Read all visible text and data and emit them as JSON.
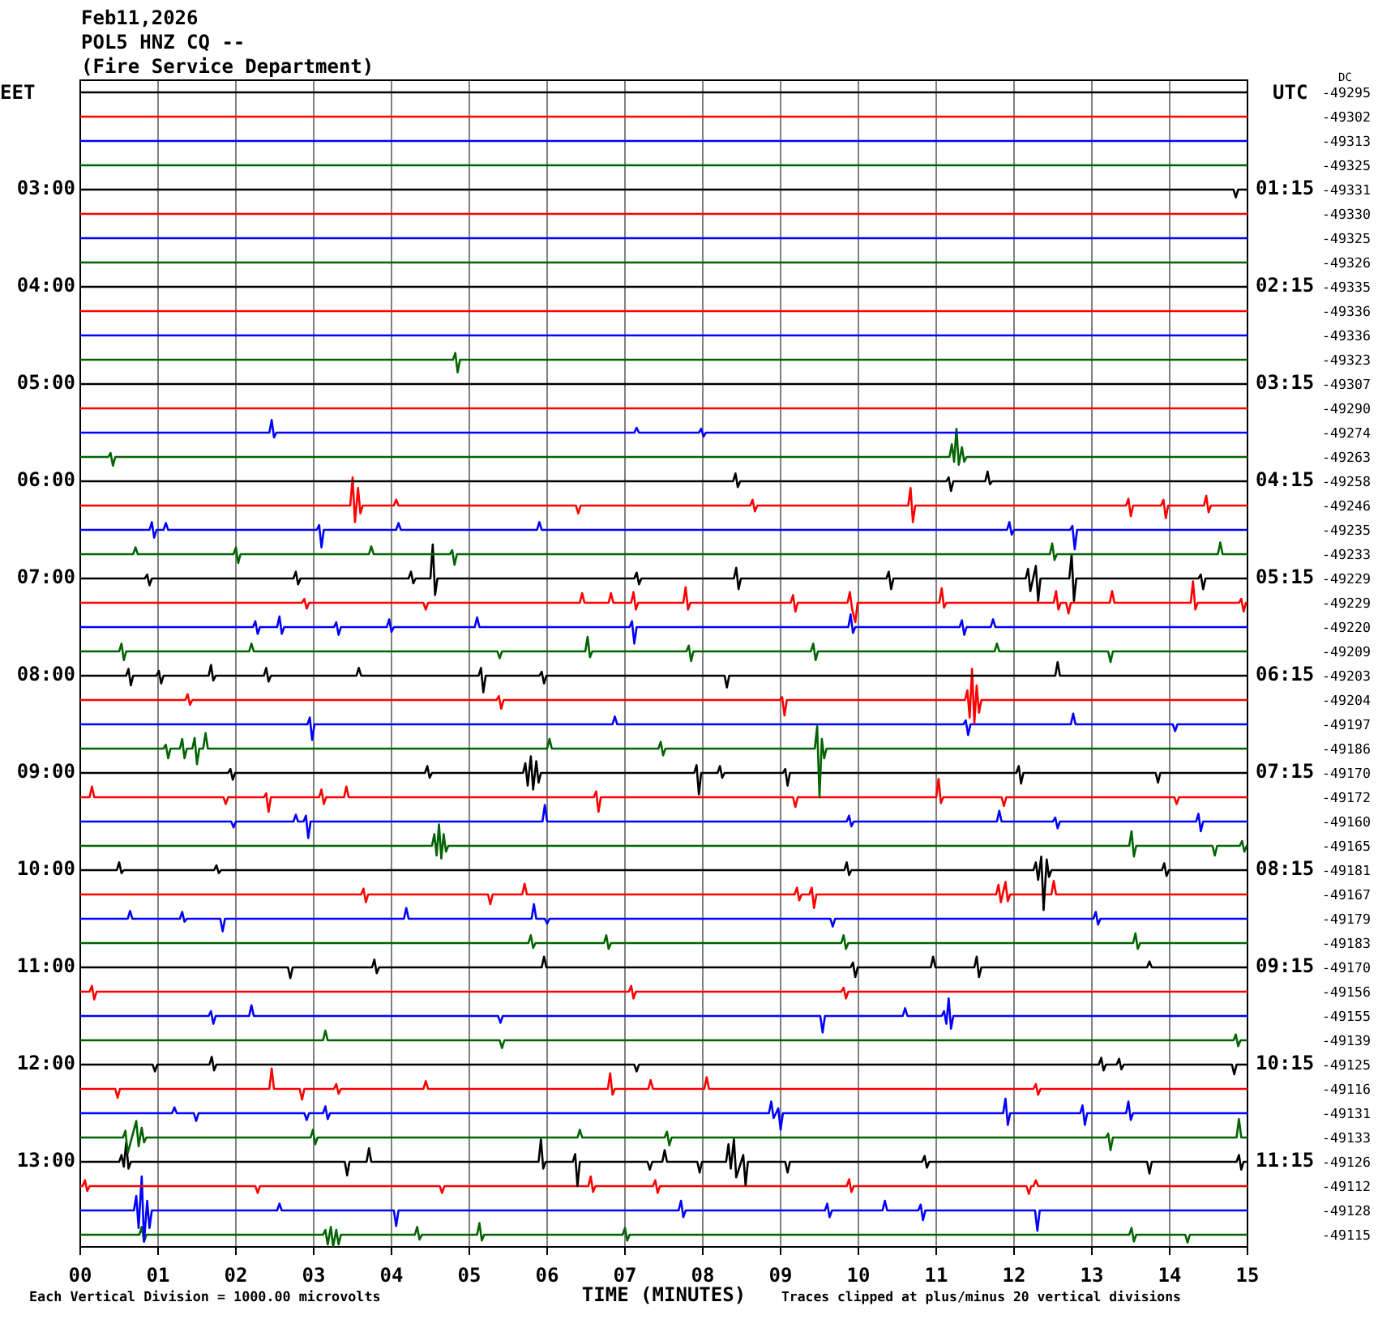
{
  "chart_data": {
    "type": "line",
    "title": "Feb11,2026",
    "subtitle": "POL5 HNZ CQ --\n(Fire Service Department)",
    "xlabel": "TIME (MINUTES)",
    "ylabel": "EET",
    "y2label": "UTC",
    "annotations": [
      "DC",
      "-49295",
      "-49302",
      "-49313",
      "-49325",
      "-49331",
      "-49330",
      "-49325",
      "-49326",
      "-49335",
      "-49336",
      "-49336",
      "-49323",
      "-49307",
      "-49290",
      "-49274",
      "-49263",
      "-49258",
      "-49246",
      "-49235",
      "-49233",
      "-49229",
      "-49229",
      "-49220",
      "-49209",
      "-49203",
      "-49204",
      "-49197",
      "-49186",
      "-49170",
      "-49172",
      "-49160",
      "-49165",
      "-49181",
      "-49167",
      "-49179",
      "-49183",
      "-49170",
      "-49156",
      "-49155",
      "-49139",
      "-49125",
      "-49116",
      "-49131",
      "-49133",
      "-49126",
      "-49112",
      "-49128",
      "-49115",
      "Each Vertical Division = 1000.00 microvolts",
      "Traces clipped at plus/minus 20 vertical divisions"
    ],
    "xlim": [
      0,
      15
    ],
    "xticks": [
      {
        "value": 0,
        "label": "00"
      },
      {
        "value": 1,
        "label": "01"
      },
      {
        "value": 2,
        "label": "02"
      },
      {
        "value": 3,
        "label": "03"
      },
      {
        "value": 4,
        "label": "04"
      },
      {
        "value": 5,
        "label": "05"
      },
      {
        "value": 6,
        "label": "06"
      },
      {
        "value": 7,
        "label": "07"
      },
      {
        "value": 8,
        "label": "08"
      },
      {
        "value": 9,
        "label": "09"
      },
      10,
      11,
      12,
      13,
      14,
      15
    ],
    "ylim": [
      13.875,
      1.875
    ],
    "yticks": [
      {
        "value": 3,
        "label": "03:00"
      },
      {
        "value": 4,
        "label": "04:00"
      },
      {
        "value": 5,
        "label": "05:00"
      },
      {
        "value": 6,
        "label": "06:00"
      },
      {
        "value": 7,
        "label": "07:00"
      },
      {
        "value": 8,
        "label": "08:00"
      },
      {
        "value": 9,
        "label": "09:00"
      },
      {
        "value": 10,
        "label": "10:00"
      },
      {
        "value": 11,
        "label": "11:00"
      },
      {
        "value": 12,
        "label": "12:00"
      },
      {
        "value": 13,
        "label": "13:00"
      }
    ],
    "y2lim": [
      12.125,
      0.125
    ],
    "y2ticks": [
      {
        "value": 1.25,
        "label": "01:15"
      },
      {
        "value": 2.25,
        "label": "02:15"
      },
      {
        "value": 3.25,
        "label": "03:15"
      },
      {
        "value": 4.25,
        "label": "04:15"
      },
      {
        "value": 5.25,
        "label": "05:15"
      },
      {
        "value": 6.25,
        "label": "06:15"
      },
      {
        "value": 7.25,
        "label": "07:15"
      },
      {
        "value": 8.25,
        "label": "08:15"
      },
      {
        "value": 9.25,
        "label": "09:15"
      },
      {
        "value": 10.25,
        "label": "10:15"
      },
      {
        "value": 11.25,
        "label": "11:15"
      }
    ],
    "grid": "x",
    "marker": "none",
    "line_style": "solid",
    "series": [
      {
        "color": "#000000",
        "x": [
          0,
          15
        ],
        "values": [
          2,
          2
        ]
      },
      {
        "color": "#ff0000",
        "x": [
          0,
          15
        ],
        "values": [
          2.25,
          2.25
        ]
      },
      {
        "color": "#0000ff",
        "x": [
          0,
          15
        ],
        "values": [
          2.5,
          2.5
        ]
      },
      {
        "color": "#006400",
        "x": [
          0,
          15
        ],
        "values": [
          2.75,
          2.75
        ]
      },
      {
        "color": "#000000",
        "x": [
          0,
          14.82,
          14.85,
          14.88,
          15
        ],
        "values": [
          3,
          3,
          3.08,
          3,
          3
        ]
      },
      {
        "color": "#ff0000",
        "x": [
          0,
          15
        ],
        "values": [
          3.25,
          3.25
        ]
      },
      {
        "color": "#0000ff",
        "x": [
          0,
          15
        ],
        "values": [
          3.5,
          3.5
        ]
      },
      {
        "color": "#006400",
        "x": [
          0,
          15
        ],
        "values": [
          3.75,
          3.75
        ]
      },
      {
        "color": "#000000",
        "x": [
          0,
          15
        ],
        "values": [
          4,
          4
        ]
      },
      {
        "color": "#ff0000",
        "x": [
          0,
          15
        ],
        "values": [
          4.25,
          4.25
        ]
      },
      {
        "color": "#0000ff",
        "x": [
          0,
          15
        ],
        "values": [
          4.5,
          4.5
        ]
      },
      {
        "color": "#006400",
        "x": [
          0,
          4.79,
          4.82,
          4.85,
          4.88,
          15
        ],
        "values": [
          4.75,
          4.75,
          4.68,
          4.88,
          4.75,
          4.75
        ]
      },
      {
        "color": "#000000",
        "x": [
          0,
          15
        ],
        "values": [
          5,
          5
        ]
      },
      {
        "color": "#ff0000",
        "x": [
          0,
          15
        ],
        "values": [
          5.25,
          5.25
        ]
      },
      {
        "color": "#0000ff",
        "x": [
          0,
          2.43,
          2.46,
          2.49,
          2.52,
          7.12,
          7.15,
          7.18,
          7.95,
          7.98,
          8.01,
          8.04,
          15
        ],
        "values": [
          5.5,
          5.5,
          5.37,
          5.55,
          5.5,
          5.5,
          5.45,
          5.5,
          5.5,
          5.46,
          5.54,
          5.5,
          5.5
        ]
      },
      {
        "color": "#006400",
        "x": [
          0,
          0.36,
          0.39,
          0.42,
          0.45,
          11.17,
          11.2,
          11.23,
          11.26,
          11.29,
          11.33,
          11.36,
          11.39,
          15
        ],
        "values": [
          5.75,
          5.75,
          5.71,
          5.84,
          5.75,
          5.75,
          5.62,
          5.8,
          5.46,
          5.83,
          5.65,
          5.8,
          5.75,
          5.75
        ]
      },
      {
        "color": "#000000",
        "x": [
          0,
          8.39,
          8.42,
          8.45,
          8.48,
          11.13,
          11.16,
          11.19,
          11.22,
          11.63,
          11.66,
          11.69,
          11.72,
          15
        ],
        "values": [
          6,
          6,
          5.92,
          6.06,
          6,
          6,
          5.96,
          6.1,
          6,
          6,
          5.9,
          6.03,
          6,
          6
        ]
      },
      {
        "color": "#ff0000",
        "x": [
          0,
          3.47,
          3.5,
          3.53,
          3.57,
          3.6,
          3.63,
          4.03,
          4.06,
          4.09,
          6.37,
          6.4,
          6.43,
          8.61,
          8.64,
          8.67,
          8.7,
          10.64,
          10.67,
          10.7,
          10.73,
          13.44,
          13.47,
          13.5,
          13.53,
          13.89,
          13.92,
          13.95,
          13.98,
          14.44,
          14.47,
          14.5,
          14.53,
          15
        ],
        "values": [
          6.25,
          6.25,
          5.96,
          6.42,
          6.07,
          6.33,
          6.25,
          6.25,
          6.19,
          6.25,
          6.25,
          6.33,
          6.25,
          6.25,
          6.19,
          6.31,
          6.25,
          6.25,
          6.07,
          6.42,
          6.25,
          6.25,
          6.18,
          6.36,
          6.25,
          6.25,
          6.19,
          6.38,
          6.25,
          6.25,
          6.15,
          6.32,
          6.25,
          6.25
        ]
      },
      {
        "color": "#0000ff",
        "x": [
          0,
          0.89,
          0.92,
          0.95,
          0.98,
          1.07,
          1.1,
          1.13,
          3.04,
          3.07,
          3.1,
          3.13,
          4.06,
          4.09,
          4.12,
          5.87,
          5.9,
          5.93,
          11.91,
          11.94,
          11.97,
          12,
          12.72,
          12.75,
          12.78,
          12.81,
          15
        ],
        "values": [
          6.5,
          6.5,
          6.42,
          6.58,
          6.5,
          6.5,
          6.43,
          6.5,
          6.5,
          6.45,
          6.68,
          6.5,
          6.5,
          6.43,
          6.5,
          6.5,
          6.42,
          6.5,
          6.5,
          6.42,
          6.55,
          6.5,
          6.5,
          6.46,
          6.7,
          6.5,
          6.5
        ]
      },
      {
        "color": "#006400",
        "x": [
          0,
          0.68,
          0.71,
          0.74,
          1.97,
          2,
          2.03,
          2.06,
          3.71,
          3.74,
          3.77,
          4.75,
          4.78,
          4.81,
          4.84,
          12.46,
          12.49,
          12.52,
          12.55,
          14.62,
          14.65,
          14.68,
          15
        ],
        "values": [
          6.75,
          6.75,
          6.68,
          6.75,
          6.75,
          6.68,
          6.84,
          6.75,
          6.75,
          6.67,
          6.75,
          6.75,
          6.71,
          6.86,
          6.75,
          6.75,
          6.64,
          6.81,
          6.75,
          6.75,
          6.63,
          6.75,
          6.75
        ]
      },
      {
        "color": "#000000",
        "x": [
          0,
          0.83,
          0.86,
          0.89,
          0.92,
          2.74,
          2.77,
          2.8,
          2.83,
          4.22,
          4.25,
          4.28,
          4.31,
          4.5,
          4.53,
          4.56,
          4.59,
          7.12,
          7.15,
          7.18,
          7.21,
          8.4,
          8.43,
          8.46,
          8.49,
          10.36,
          10.39,
          10.42,
          10.45,
          12.15,
          12.18,
          12.21,
          12.28,
          12.31,
          12.34,
          12.71,
          12.74,
          12.77,
          12.8,
          14.37,
          14.4,
          14.43,
          14.46,
          15
        ],
        "values": [
          7,
          7,
          6.96,
          7.07,
          7,
          7,
          6.93,
          7.06,
          7,
          7,
          6.93,
          7.05,
          7,
          7,
          6.65,
          7.17,
          7,
          7,
          6.94,
          7.06,
          7,
          7,
          6.89,
          7.11,
          7,
          7,
          6.93,
          7.11,
          7,
          7,
          6.9,
          7.13,
          6.87,
          7.23,
          7,
          7,
          6.75,
          7.23,
          7,
          7,
          6.96,
          7.11,
          7,
          7
        ]
      },
      {
        "color": "#ff0000",
        "x": [
          0,
          2.85,
          2.88,
          2.91,
          2.94,
          4.41,
          4.44,
          4.47,
          6.42,
          6.45,
          6.48,
          6.79,
          6.82,
          6.85,
          7.08,
          7.11,
          7.14,
          7.17,
          7.75,
          7.78,
          7.81,
          7.84,
          9.13,
          9.16,
          9.19,
          9.22,
          9.86,
          9.89,
          9.92,
          9.96,
          9.99,
          11.04,
          11.07,
          11.1,
          11.13,
          12.51,
          12.54,
          12.57,
          12.6,
          12.67,
          12.7,
          12.73,
          13.23,
          13.26,
          13.29,
          14.27,
          14.3,
          14.33,
          14.36,
          14.89,
          14.92,
          14.95,
          14.98,
          15
        ],
        "values": [
          7.25,
          7.25,
          7.21,
          7.31,
          7.25,
          7.25,
          7.32,
          7.25,
          7.25,
          7.15,
          7.25,
          7.25,
          7.15,
          7.25,
          7.25,
          7.14,
          7.32,
          7.25,
          7.25,
          7.09,
          7.32,
          7.25,
          7.25,
          7.17,
          7.34,
          7.25,
          7.25,
          7.14,
          7.32,
          7.45,
          7.25,
          7.25,
          7.1,
          7.3,
          7.25,
          7.25,
          7.13,
          7.32,
          7.25,
          7.25,
          7.36,
          7.25,
          7.25,
          7.13,
          7.25,
          7.25,
          7.03,
          7.32,
          7.25,
          7.25,
          7.21,
          7.34,
          7.25,
          7.25
        ]
      },
      {
        "color": "#0000ff",
        "x": [
          0,
          2.22,
          2.25,
          2.28,
          2.31,
          2.53,
          2.56,
          2.59,
          2.62,
          3.26,
          3.29,
          3.32,
          3.35,
          3.94,
          3.97,
          4,
          4.03,
          5.07,
          5.1,
          5.13,
          7.06,
          7.09,
          7.12,
          7.15,
          9.87,
          9.9,
          9.93,
          9.96,
          11.3,
          11.33,
          11.36,
          11.39,
          11.7,
          11.73,
          11.76,
          15
        ],
        "values": [
          7.5,
          7.5,
          7.44,
          7.57,
          7.5,
          7.5,
          7.39,
          7.57,
          7.5,
          7.5,
          7.45,
          7.58,
          7.5,
          7.5,
          7.42,
          7.55,
          7.5,
          7.5,
          7.4,
          7.5,
          7.5,
          7.44,
          7.67,
          7.5,
          7.5,
          7.37,
          7.56,
          7.5,
          7.5,
          7.43,
          7.58,
          7.5,
          7.5,
          7.42,
          7.5,
          7.5
        ]
      },
      {
        "color": "#006400",
        "x": [
          0,
          0.5,
          0.53,
          0.56,
          0.59,
          2.17,
          2.2,
          2.23,
          5.36,
          5.39,
          5.42,
          6.49,
          6.52,
          6.55,
          6.58,
          7.79,
          7.82,
          7.85,
          7.88,
          9.39,
          9.42,
          9.45,
          9.48,
          11.75,
          11.78,
          11.81,
          13.21,
          13.24,
          13.27,
          15
        ],
        "values": [
          7.75,
          7.75,
          7.67,
          7.84,
          7.75,
          7.75,
          7.67,
          7.75,
          7.75,
          7.82,
          7.75,
          7.75,
          7.6,
          7.81,
          7.75,
          7.75,
          7.69,
          7.85,
          7.75,
          7.75,
          7.67,
          7.84,
          7.75,
          7.75,
          7.67,
          7.75,
          7.75,
          7.86,
          7.75,
          7.75
        ]
      },
      {
        "color": "#000000",
        "x": [
          0,
          0.59,
          0.62,
          0.65,
          0.68,
          0.98,
          1.01,
          1.04,
          1.07,
          1.65,
          1.68,
          1.71,
          1.74,
          2.36,
          2.39,
          2.42,
          2.45,
          3.55,
          3.58,
          3.61,
          5.12,
          5.15,
          5.18,
          5.21,
          5.9,
          5.93,
          5.96,
          5.99,
          8.28,
          8.31,
          8.34,
          12.53,
          12.56,
          12.59,
          15
        ],
        "values": [
          8,
          8,
          7.93,
          8.1,
          8,
          8,
          7.95,
          8.08,
          8,
          8,
          7.89,
          8.05,
          8,
          8,
          7.92,
          8.06,
          8,
          8,
          7.92,
          8,
          8,
          7.92,
          8.17,
          8,
          8,
          7.96,
          8.08,
          8,
          8,
          8.12,
          8,
          8,
          7.86,
          8,
          8
        ]
      },
      {
        "color": "#ff0000",
        "x": [
          0,
          1.35,
          1.38,
          1.41,
          1.44,
          5.35,
          5.38,
          5.41,
          5.44,
          8.99,
          9.02,
          9.05,
          9.08,
          11.37,
          11.4,
          11.43,
          11.46,
          11.49,
          11.52,
          11.55,
          11.58,
          15
        ],
        "values": [
          8.25,
          8.25,
          8.19,
          8.3,
          8.25,
          8.25,
          8.21,
          8.34,
          8.25,
          8.25,
          8.22,
          8.41,
          8.25,
          8.25,
          8.15,
          8.43,
          7.93,
          8.49,
          8.1,
          8.38,
          8.25,
          8.25
        ]
      },
      {
        "color": "#0000ff",
        "x": [
          0,
          2.92,
          2.95,
          2.98,
          3.01,
          6.84,
          6.87,
          6.9,
          11.35,
          11.38,
          11.41,
          11.44,
          12.73,
          12.76,
          12.79,
          14.04,
          14.07,
          14.1,
          15
        ],
        "values": [
          8.5,
          8.5,
          8.43,
          8.66,
          8.5,
          8.5,
          8.42,
          8.5,
          8.5,
          8.46,
          8.61,
          8.5,
          8.5,
          8.39,
          8.5,
          8.5,
          8.57,
          8.5,
          8.5
        ]
      },
      {
        "color": "#006400",
        "x": [
          0,
          1.07,
          1.1,
          1.13,
          1.16,
          1.28,
          1.31,
          1.34,
          1.37,
          1.44,
          1.47,
          1.5,
          1.53,
          1.58,
          1.61,
          1.64,
          6,
          6.03,
          6.06,
          7.43,
          7.46,
          7.49,
          7.52,
          9.44,
          9.47,
          9.5,
          9.53,
          9.56,
          9.59,
          15
        ],
        "values": [
          8.75,
          8.75,
          8.71,
          8.85,
          8.75,
          8.75,
          8.65,
          8.85,
          8.75,
          8.75,
          8.64,
          8.91,
          8.75,
          8.75,
          8.59,
          8.75,
          8.75,
          8.65,
          8.75,
          8.75,
          8.68,
          8.82,
          8.75,
          8.75,
          8.52,
          9.25,
          8.65,
          8.85,
          8.75,
          8.75
        ]
      },
      {
        "color": "#000000",
        "x": [
          0,
          1.9,
          1.93,
          1.96,
          1.99,
          4.43,
          4.46,
          4.49,
          4.52,
          5.69,
          5.72,
          5.75,
          5.79,
          5.82,
          5.86,
          5.89,
          5.92,
          7.89,
          7.92,
          7.95,
          7.98,
          8.19,
          8.22,
          8.25,
          8.28,
          9.03,
          9.06,
          9.09,
          9.12,
          12.03,
          12.06,
          12.09,
          12.12,
          13.82,
          13.85,
          13.88,
          15
        ],
        "values": [
          9,
          9,
          8.96,
          9.07,
          9,
          9,
          8.93,
          9.05,
          9,
          9,
          8.9,
          9.13,
          8.83,
          9.17,
          8.88,
          9.1,
          9,
          9,
          8.92,
          9.22,
          9,
          9,
          8.93,
          9.05,
          9,
          9,
          8.96,
          9.13,
          9,
          9,
          8.93,
          9.11,
          9,
          9,
          9.1,
          9,
          9
        ]
      },
      {
        "color": "#ff0000",
        "x": [
          0,
          0.12,
          0.15,
          0.18,
          1.84,
          1.87,
          1.9,
          2.36,
          2.39,
          2.42,
          2.45,
          3.07,
          3.1,
          3.13,
          3.16,
          3.39,
          3.42,
          3.45,
          6.6,
          6.63,
          6.66,
          6.69,
          9.16,
          9.19,
          9.22,
          11,
          11.03,
          11.06,
          11.09,
          11.84,
          11.87,
          11.9,
          14.06,
          14.09,
          14.12,
          15
        ],
        "values": [
          9.25,
          9.25,
          9.14,
          9.25,
          9.25,
          9.32,
          9.25,
          9.25,
          9.21,
          9.4,
          9.25,
          9.25,
          9.17,
          9.32,
          9.25,
          9.25,
          9.14,
          9.25,
          9.25,
          9.19,
          9.4,
          9.25,
          9.25,
          9.35,
          9.25,
          9.25,
          9.06,
          9.31,
          9.25,
          9.25,
          9.34,
          9.25,
          9.25,
          9.32,
          9.25,
          9.25
        ]
      },
      {
        "color": "#0000ff",
        "x": [
          0,
          1.94,
          1.97,
          2,
          2.74,
          2.77,
          2.8,
          2.87,
          2.9,
          2.93,
          2.96,
          5.94,
          5.97,
          6,
          9.85,
          9.88,
          9.91,
          9.94,
          11.78,
          11.81,
          11.84,
          12.5,
          12.53,
          12.56,
          12.59,
          14.34,
          14.37,
          14.4,
          14.43,
          15
        ],
        "values": [
          9.5,
          9.5,
          9.56,
          9.5,
          9.5,
          9.43,
          9.5,
          9.5,
          9.44,
          9.67,
          9.5,
          9.5,
          9.33,
          9.5,
          9.5,
          9.44,
          9.55,
          9.5,
          9.5,
          9.39,
          9.5,
          9.5,
          9.46,
          9.57,
          9.5,
          9.5,
          9.42,
          9.6,
          9.5,
          9.5
        ]
      },
      {
        "color": "#006400",
        "x": [
          0,
          4.52,
          4.55,
          4.58,
          4.61,
          4.64,
          4.67,
          4.7,
          4.73,
          13.48,
          13.51,
          13.54,
          13.57,
          14.55,
          14.58,
          14.61,
          14.9,
          14.93,
          14.96,
          14.99,
          15
        ],
        "values": [
          9.75,
          9.75,
          9.63,
          9.85,
          9.53,
          9.88,
          9.63,
          9.81,
          9.75,
          9.75,
          9.6,
          9.86,
          9.75,
          9.75,
          9.85,
          9.75,
          9.75,
          9.7,
          9.81,
          9.75,
          9.75
        ]
      },
      {
        "color": "#000000",
        "x": [
          0,
          0.47,
          0.5,
          0.53,
          0.56,
          1.72,
          1.75,
          1.78,
          1.81,
          9.82,
          9.85,
          9.88,
          9.91,
          12.25,
          12.28,
          12.31,
          12.35,
          12.38,
          12.42,
          12.45,
          12.48,
          13.9,
          13.93,
          13.96,
          13.99,
          15
        ],
        "values": [
          10,
          10,
          9.92,
          10.03,
          10,
          10,
          9.95,
          10.03,
          10,
          10,
          9.92,
          10.05,
          10,
          10,
          9.92,
          10.1,
          9.86,
          10.41,
          9.89,
          10.07,
          10,
          10,
          9.93,
          10.06,
          10,
          10
        ]
      },
      {
        "color": "#ff0000",
        "x": [
          0,
          3.61,
          3.64,
          3.67,
          3.7,
          5.24,
          5.27,
          5.3,
          5.68,
          5.71,
          5.74,
          9.18,
          9.21,
          9.24,
          9.27,
          9.37,
          9.4,
          9.43,
          9.46,
          11.77,
          11.8,
          11.83,
          11.89,
          11.92,
          11.95,
          12.48,
          12.51,
          12.54,
          15
        ],
        "values": [
          10.25,
          10.25,
          10.19,
          10.33,
          10.25,
          10.25,
          10.35,
          10.25,
          10.25,
          10.14,
          10.25,
          10.25,
          10.18,
          10.31,
          10.25,
          10.25,
          10.18,
          10.39,
          10.25,
          10.25,
          10.15,
          10.33,
          10.12,
          10.32,
          10.25,
          10.25,
          10.11,
          10.25,
          10.25
        ]
      },
      {
        "color": "#0000ff",
        "x": [
          0,
          0.61,
          0.64,
          0.67,
          1.28,
          1.31,
          1.34,
          1.37,
          1.8,
          1.83,
          1.86,
          4.16,
          4.19,
          4.22,
          5.8,
          5.83,
          5.86,
          5.97,
          6,
          6.03,
          9.64,
          9.67,
          9.7,
          13.02,
          13.05,
          13.08,
          13.11,
          15
        ],
        "values": [
          10.5,
          10.5,
          10.42,
          10.5,
          10.5,
          10.43,
          10.53,
          10.5,
          10.5,
          10.63,
          10.5,
          10.5,
          10.39,
          10.5,
          10.5,
          10.35,
          10.5,
          10.5,
          10.55,
          10.5,
          10.5,
          10.58,
          10.5,
          10.5,
          10.43,
          10.56,
          10.5,
          10.5
        ]
      },
      {
        "color": "#006400",
        "x": [
          0,
          5.76,
          5.79,
          5.82,
          5.85,
          6.73,
          6.76,
          6.79,
          6.82,
          9.78,
          9.81,
          9.84,
          9.87,
          13.53,
          13.56,
          13.59,
          13.62,
          15
        ],
        "values": [
          10.75,
          10.75,
          10.67,
          10.8,
          10.75,
          10.75,
          10.67,
          10.81,
          10.75,
          10.75,
          10.67,
          10.81,
          10.75,
          10.75,
          10.65,
          10.81,
          10.75,
          10.75
        ]
      },
      {
        "color": "#000000",
        "x": [
          0,
          2.67,
          2.7,
          2.73,
          3.75,
          3.78,
          3.81,
          3.84,
          5.93,
          5.96,
          5.99,
          9.9,
          9.93,
          9.96,
          9.99,
          10.93,
          10.96,
          10.99,
          11.49,
          11.52,
          11.55,
          11.58,
          13.71,
          13.74,
          13.77,
          15
        ],
        "values": [
          11,
          11,
          11.11,
          11,
          11,
          10.92,
          11.06,
          11,
          11,
          10.89,
          11,
          11,
          10.95,
          11.1,
          11,
          11,
          10.89,
          11,
          11,
          10.89,
          11.1,
          11,
          11,
          10.94,
          11,
          11
        ]
      },
      {
        "color": "#ff0000",
        "x": [
          0,
          0.12,
          0.15,
          0.18,
          0.21,
          7.05,
          7.08,
          7.11,
          7.14,
          9.78,
          9.81,
          9.84,
          9.87,
          15
        ],
        "values": [
          11.25,
          11.25,
          11.19,
          11.33,
          11.25,
          11.25,
          11.19,
          11.32,
          11.25,
          11.25,
          11.21,
          11.32,
          11.25,
          11.25
        ]
      },
      {
        "color": "#0000ff",
        "x": [
          0,
          1.65,
          1.68,
          1.71,
          1.74,
          2.17,
          2.2,
          2.23,
          5.37,
          5.4,
          5.43,
          9.51,
          9.54,
          9.57,
          10.57,
          10.6,
          10.63,
          11.07,
          11.1,
          11.13,
          11.16,
          11.19,
          11.22,
          15
        ],
        "values": [
          11.5,
          11.5,
          11.45,
          11.58,
          11.5,
          11.5,
          11.39,
          11.5,
          11.5,
          11.57,
          11.5,
          11.5,
          11.67,
          11.5,
          11.5,
          11.42,
          11.5,
          11.5,
          11.45,
          11.58,
          11.32,
          11.63,
          11.5,
          11.5
        ]
      },
      {
        "color": "#006400",
        "x": [
          0,
          3.12,
          3.15,
          3.18,
          5.39,
          5.42,
          5.45,
          14.82,
          14.85,
          14.88,
          14.91,
          15
        ],
        "values": [
          11.75,
          11.75,
          11.65,
          11.75,
          11.75,
          11.83,
          11.75,
          11.75,
          11.69,
          11.81,
          11.75,
          11.75
        ]
      },
      {
        "color": "#000000",
        "x": [
          0,
          0.93,
          0.96,
          0.99,
          1.66,
          1.69,
          1.72,
          1.75,
          7.12,
          7.15,
          7.18,
          13.09,
          13.12,
          13.15,
          13.18,
          13.32,
          13.35,
          13.38,
          13.41,
          14.8,
          14.83,
          14.86,
          15
        ],
        "values": [
          12,
          12,
          12.07,
          12,
          12,
          11.92,
          12.06,
          12,
          12,
          12.07,
          12,
          12,
          11.93,
          12.06,
          12,
          12,
          11.94,
          12.05,
          12,
          12,
          12.1,
          12,
          12
        ]
      },
      {
        "color": "#ff0000",
        "x": [
          0,
          0.45,
          0.48,
          0.51,
          2.43,
          2.46,
          2.49,
          2.82,
          2.85,
          2.88,
          3.26,
          3.29,
          3.32,
          3.35,
          4.41,
          4.44,
          4.47,
          6.78,
          6.81,
          6.84,
          6.87,
          7.3,
          7.33,
          7.36,
          8.02,
          8.05,
          8.08,
          12.25,
          12.28,
          12.31,
          12.34,
          15
        ],
        "values": [
          12.25,
          12.25,
          12.34,
          12.25,
          12.25,
          12.04,
          12.25,
          12.25,
          12.36,
          12.25,
          12.25,
          12.2,
          12.3,
          12.25,
          12.25,
          12.17,
          12.25,
          12.25,
          12.09,
          12.31,
          12.25,
          12.25,
          12.16,
          12.25,
          12.25,
          12.13,
          12.25,
          12.25,
          12.2,
          12.31,
          12.25,
          12.25
        ]
      },
      {
        "color": "#0000ff",
        "x": [
          0,
          1.18,
          1.21,
          1.24,
          1.46,
          1.49,
          1.52,
          2.88,
          2.91,
          2.94,
          3.12,
          3.15,
          3.18,
          3.21,
          8.85,
          8.88,
          8.91,
          8.97,
          9,
          9.03,
          11.86,
          11.89,
          11.92,
          11.95,
          12.85,
          12.88,
          12.91,
          12.94,
          13.44,
          13.47,
          13.5,
          13.53,
          15
        ],
        "values": [
          12.5,
          12.5,
          12.44,
          12.5,
          12.5,
          12.58,
          12.5,
          12.5,
          12.57,
          12.5,
          12.5,
          12.43,
          12.56,
          12.5,
          12.5,
          12.38,
          12.55,
          12.45,
          12.67,
          12.5,
          12.5,
          12.35,
          12.62,
          12.5,
          12.5,
          12.42,
          12.62,
          12.5,
          12.5,
          12.38,
          12.57,
          12.5,
          12.5
        ]
      },
      {
        "color": "#006400",
        "x": [
          0,
          0.55,
          0.58,
          0.61,
          0.72,
          0.75,
          0.79,
          0.82,
          0.85,
          2.96,
          2.99,
          3.02,
          3.05,
          6.39,
          6.42,
          6.45,
          7.51,
          7.54,
          7.57,
          7.6,
          13.18,
          13.21,
          13.24,
          13.27,
          14.86,
          14.89,
          14.92,
          15
        ],
        "values": [
          12.75,
          12.75,
          12.68,
          12.91,
          12.58,
          12.84,
          12.65,
          12.8,
          12.75,
          12.75,
          12.67,
          12.82,
          12.75,
          12.75,
          12.67,
          12.75,
          12.75,
          12.69,
          12.83,
          12.75,
          12.75,
          12.71,
          12.88,
          12.75,
          12.75,
          12.56,
          12.75,
          12.75
        ]
      },
      {
        "color": "#000000",
        "x": [
          0,
          0.5,
          0.53,
          0.56,
          0.59,
          0.62,
          0.65,
          3.4,
          3.43,
          3.46,
          3.68,
          3.71,
          3.74,
          5.89,
          5.92,
          5.95,
          5.98,
          6.33,
          6.36,
          6.39,
          6.42,
          7.29,
          7.32,
          7.35,
          7.48,
          7.51,
          7.54,
          7.93,
          7.96,
          7.99,
          8.3,
          8.33,
          8.36,
          8.4,
          8.43,
          8.52,
          8.55,
          8.58,
          9.06,
          9.09,
          9.12,
          10.82,
          10.85,
          10.88,
          10.91,
          13.71,
          13.74,
          13.77,
          14.86,
          14.89,
          14.92,
          14.95,
          15
        ],
        "values": [
          13,
          13,
          12.93,
          13.05,
          12.8,
          13.07,
          13,
          13,
          13.14,
          13,
          13,
          12.86,
          13,
          13,
          12.77,
          13.07,
          13,
          13,
          12.92,
          13.25,
          13,
          13,
          13.08,
          13,
          13,
          12.88,
          13,
          13,
          13.11,
          13,
          13,
          12.82,
          13.07,
          12.77,
          13.16,
          12.93,
          13.24,
          13,
          13,
          13.11,
          13,
          13,
          12.94,
          13.06,
          13,
          13,
          13.12,
          13,
          13,
          12.93,
          13.08,
          13,
          13
        ]
      },
      {
        "color": "#ff0000",
        "x": [
          0,
          0.03,
          0.06,
          0.09,
          0.12,
          2.25,
          2.28,
          2.31,
          4.62,
          4.65,
          4.68,
          6.53,
          6.56,
          6.59,
          6.62,
          7.36,
          7.39,
          7.42,
          7.45,
          9.85,
          9.88,
          9.91,
          9.94,
          12.16,
          12.19,
          12.22,
          12.25,
          12.28,
          12.31,
          15
        ],
        "values": [
          13.25,
          13.25,
          13.19,
          13.3,
          13.25,
          13.25,
          13.32,
          13.25,
          13.25,
          13.32,
          13.25,
          13.25,
          13.15,
          13.31,
          13.25,
          13.25,
          13.19,
          13.32,
          13.25,
          13.25,
          13.18,
          13.31,
          13.25,
          13.25,
          13.33,
          13.25,
          13.25,
          13.19,
          13.25,
          13.25
        ]
      },
      {
        "color": "#0000ff",
        "x": [
          0,
          0.69,
          0.72,
          0.75,
          0.79,
          0.82,
          0.86,
          0.89,
          0.92,
          2.53,
          2.56,
          2.59,
          4.03,
          4.06,
          4.09,
          7.69,
          7.72,
          7.75,
          7.78,
          9.57,
          9.6,
          9.63,
          9.66,
          10.31,
          10.34,
          10.37,
          10.77,
          10.8,
          10.83,
          10.86,
          12.27,
          12.3,
          12.33,
          15
        ],
        "values": [
          13.5,
          13.5,
          13.35,
          13.68,
          13.15,
          13.82,
          13.4,
          13.68,
          13.5,
          13.5,
          13.43,
          13.5,
          13.5,
          13.66,
          13.5,
          13.5,
          13.4,
          13.57,
          13.5,
          13.5,
          13.43,
          13.57,
          13.5,
          13.5,
          13.4,
          13.5,
          13.5,
          13.44,
          13.6,
          13.5,
          13.5,
          13.71,
          13.5,
          13.5
        ]
      },
      {
        "color": "#006400",
        "x": [
          0,
          0.76,
          0.79,
          0.82,
          0.85,
          3.12,
          3.15,
          3.18,
          3.22,
          3.25,
          3.29,
          3.32,
          3.35,
          4.3,
          4.33,
          4.36,
          4.39,
          5.1,
          5.13,
          5.16,
          5.19,
          6.97,
          7,
          7.03,
          7.06,
          13.48,
          13.51,
          13.54,
          13.57,
          14.2,
          14.23,
          14.26,
          15
        ],
        "values": [
          13.75,
          13.75,
          13.67,
          13.82,
          13.75,
          13.75,
          13.7,
          13.85,
          13.67,
          13.87,
          13.7,
          13.85,
          13.75,
          13.75,
          13.67,
          13.8,
          13.75,
          13.75,
          13.63,
          13.81,
          13.75,
          13.75,
          13.68,
          13.81,
          13.75,
          13.75,
          13.68,
          13.82,
          13.75,
          13.75,
          13.83,
          13.75,
          13.75
        ]
      }
    ]
  }
}
